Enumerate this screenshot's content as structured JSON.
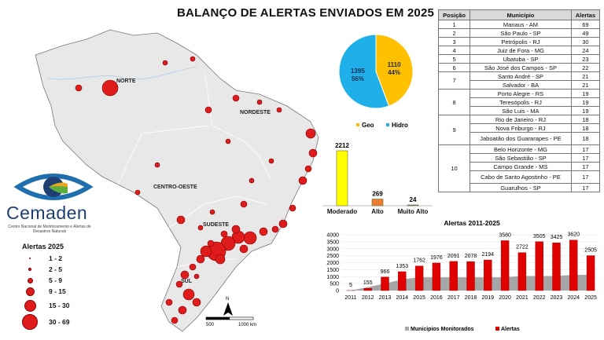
{
  "title": "BALANÇO DE ALERTAS ENVIADOS EM 2025",
  "map": {
    "regions": [
      "NORTE",
      "NORDESTE",
      "CENTRO-OESTE",
      "SUDESTE",
      "SUL"
    ],
    "scale_labels": [
      "500",
      "1000 km"
    ],
    "north_label": "N"
  },
  "logo": {
    "name": "Cemaden",
    "subtitle": "Centro Nacional de Monitoramento e Alertas de Desastres Naturais"
  },
  "legend": {
    "title": "Alertas 2025",
    "classes": [
      "1 - 2",
      "2 - 5",
      "5 - 9",
      "9 - 15",
      "15 - 30",
      "30 - 69"
    ],
    "color": "#e01b1b"
  },
  "ranking": {
    "headers": [
      "Posição",
      "Município",
      "Alertas"
    ],
    "groups": [
      {
        "pos": "1",
        "rows": [
          [
            "Manaus - AM",
            "69"
          ]
        ]
      },
      {
        "pos": "2",
        "rows": [
          [
            "São Paulo - SP",
            "49"
          ]
        ]
      },
      {
        "pos": "3",
        "rows": [
          [
            "Petrópolis - RJ",
            "30"
          ]
        ]
      },
      {
        "pos": "4",
        "rows": [
          [
            "Juiz de Fora - MG",
            "24"
          ]
        ]
      },
      {
        "pos": "5",
        "rows": [
          [
            "Ubatuba - SP",
            "23"
          ]
        ]
      },
      {
        "pos": "6",
        "rows": [
          [
            "São José dos Campos - SP",
            "22"
          ]
        ]
      },
      {
        "pos": "7",
        "rows": [
          [
            "Santo André - SP",
            "21"
          ],
          [
            "Salvador - BA",
            "21"
          ]
        ]
      },
      {
        "pos": "8",
        "rows": [
          [
            "Porto Alegre - RS",
            "19"
          ],
          [
            "Teresópolis - RJ",
            "19"
          ],
          [
            "São Luis - MA",
            "19"
          ]
        ]
      },
      {
        "pos": "9",
        "rows": [
          [
            "Rio de Janeiro - RJ",
            "18"
          ],
          [
            "Nova Friburgo - RJ",
            "18"
          ],
          [
            "Jaboatão dos Guararapes - PE",
            "18"
          ]
        ]
      },
      {
        "pos": "10",
        "rows": [
          [
            "Belo Horizonte - MG",
            "17"
          ],
          [
            "São Sebastião - SP",
            "17"
          ],
          [
            "Campo Grande - MS",
            "17"
          ],
          [
            "Cabo de Santo Agostinho - PE",
            "17"
          ],
          [
            "Guarulhos - SP",
            "17"
          ]
        ]
      }
    ]
  },
  "chart_data": [
    {
      "type": "pie",
      "categories": [
        "Geo",
        "Hidro"
      ],
      "values": [
        1110,
        1395
      ],
      "labels": [
        "44%",
        "56%"
      ],
      "colors": [
        "#ffc000",
        "#1fb0ea"
      ],
      "legend_position": "bottom"
    },
    {
      "type": "bar",
      "categories": [
        "Moderado",
        "Alto",
        "Muito Alto"
      ],
      "values": [
        2212,
        269,
        24
      ],
      "colors": [
        "#ffff00",
        "#ed7d31",
        "#7f7f7f"
      ]
    },
    {
      "type": "bar",
      "title": "Alertas 2011-2025",
      "categories": [
        "2011",
        "2012",
        "2013",
        "2014",
        "2015",
        "2016",
        "2017",
        "2018",
        "2019",
        "2020",
        "2021",
        "2022",
        "2023",
        "2024",
        "2025"
      ],
      "ylim": [
        0,
        4000
      ],
      "yticks": [
        "0",
        "500",
        "1000",
        "1500",
        "2000",
        "2500",
        "3000",
        "3500",
        "4000"
      ],
      "grid": true,
      "legend_position": "bottom",
      "series": [
        {
          "name": "Municipios Monitorados",
          "type": "area",
          "color": "#a6a6a6",
          "values": [
            0,
            250,
            500,
            800,
            950,
            950,
            950,
            950,
            950,
            950,
            1040,
            1040,
            1040,
            1130,
            1130
          ]
        },
        {
          "name": "Alertas",
          "type": "bar",
          "color": "#e00000",
          "values": [
            5,
            155,
            966,
            1353,
            1762,
            1976,
            2091,
            2078,
            2194,
            3580,
            2722,
            3505,
            3425,
            3620,
            2505
          ]
        }
      ]
    }
  ]
}
